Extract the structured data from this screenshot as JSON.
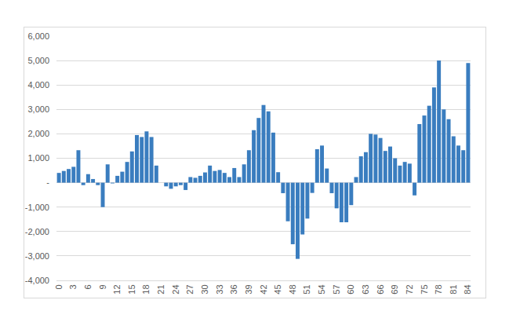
{
  "chart_data": {
    "type": "bar",
    "x": [
      0,
      1,
      2,
      3,
      4,
      5,
      6,
      7,
      8,
      9,
      10,
      11,
      12,
      13,
      14,
      15,
      16,
      17,
      18,
      19,
      20,
      21,
      22,
      23,
      24,
      25,
      26,
      27,
      28,
      29,
      30,
      31,
      32,
      33,
      34,
      35,
      36,
      37,
      38,
      39,
      40,
      41,
      42,
      43,
      44,
      45,
      46,
      47,
      48,
      49,
      50,
      51,
      52,
      53,
      54,
      55,
      56,
      57,
      58,
      59,
      60,
      61,
      62,
      63,
      64,
      65,
      66,
      67,
      68,
      69,
      70,
      71,
      72,
      73,
      74,
      75,
      76,
      77,
      78,
      79,
      80,
      81,
      82,
      83,
      84
    ],
    "values": [
      400,
      480,
      560,
      650,
      1330,
      -100,
      350,
      150,
      -100,
      -1000,
      750,
      -30,
      280,
      450,
      850,
      1280,
      1950,
      1870,
      2100,
      1870,
      700,
      0,
      -150,
      -250,
      -150,
      -100,
      -300,
      230,
      200,
      280,
      420,
      700,
      480,
      520,
      400,
      230,
      600,
      230,
      750,
      1330,
      2150,
      2650,
      3180,
      2920,
      2050,
      430,
      -430,
      -1580,
      -2520,
      -3120,
      -2120,
      -1470,
      -420,
      1370,
      1520,
      580,
      -430,
      -1050,
      -1620,
      -1620,
      -920,
      230,
      1080,
      1250,
      2000,
      1970,
      1830,
      1300,
      1480,
      1000,
      700,
      850,
      780,
      -520,
      2400,
      2750,
      3150,
      3900,
      5000,
      3000,
      2600,
      1900,
      1520,
      1330,
      4900
    ],
    "color": "#3a7dbf",
    "xlim": [
      -0.5,
      84.5
    ],
    "xticks": [
      0,
      3,
      6,
      9,
      12,
      15,
      18,
      21,
      24,
      27,
      30,
      33,
      36,
      39,
      42,
      45,
      48,
      51,
      54,
      57,
      60,
      63,
      66,
      69,
      72,
      75,
      78,
      81,
      84
    ],
    "ylim": [
      -4000,
      6000
    ],
    "yticks": [
      {
        "value": -4000,
        "label": "-4,000"
      },
      {
        "value": -3000,
        "label": "-3,000"
      },
      {
        "value": -2000,
        "label": "-2,000"
      },
      {
        "value": -1000,
        "label": "-1,000"
      },
      {
        "value": 0,
        "label": "-"
      },
      {
        "value": 1000,
        "label": "1,000"
      },
      {
        "value": 2000,
        "label": "2,000"
      },
      {
        "value": 3000,
        "label": "3,000"
      },
      {
        "value": 4000,
        "label": "4,000"
      },
      {
        "value": 5000,
        "label": "5,000"
      },
      {
        "value": 6000,
        "label": "6,000"
      }
    ],
    "grid": true
  }
}
